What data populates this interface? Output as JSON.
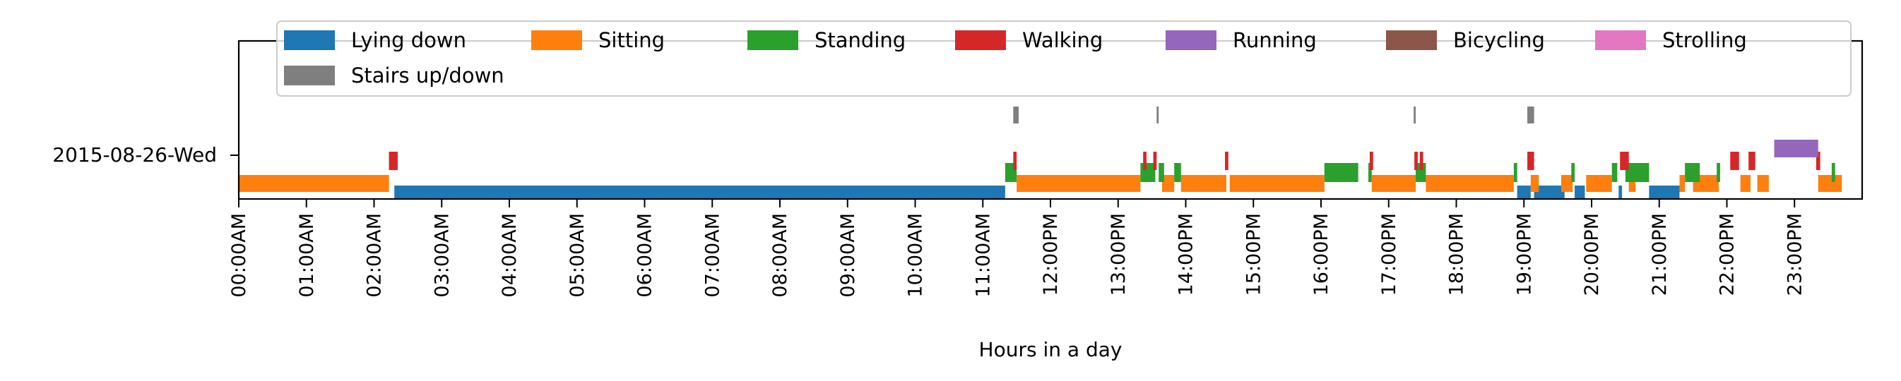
{
  "chart_data": {
    "type": "timeline",
    "xlabel": "Hours in a day",
    "xlim_hours": [
      0,
      24
    ],
    "row_label": "2015-08-26-Wed",
    "tick_labels": [
      "00:00AM",
      "01:00AM",
      "02:00AM",
      "03:00AM",
      "04:00AM",
      "05:00AM",
      "06:00AM",
      "07:00AM",
      "08:00AM",
      "09:00AM",
      "10:00AM",
      "11:00AM",
      "12:00PM",
      "13:00PM",
      "14:00PM",
      "15:00PM",
      "16:00PM",
      "17:00PM",
      "18:00PM",
      "19:00PM",
      "20:00PM",
      "21:00PM",
      "22:00PM",
      "23:00PM"
    ],
    "legend_position": "top",
    "grid": false,
    "series": [
      {
        "name": "Lying down",
        "color": "#1f77b4",
        "intervals": [
          [
            2.3,
            11.33
          ],
          [
            18.9,
            19.1
          ],
          [
            19.15,
            19.6
          ],
          [
            19.75,
            19.9
          ],
          [
            20.4,
            20.45
          ],
          [
            20.85,
            21.3
          ]
        ]
      },
      {
        "name": "Sitting",
        "color": "#ff7f0e",
        "intervals": [
          [
            0,
            2.22
          ],
          [
            11.5,
            13.33
          ],
          [
            13.65,
            13.83
          ],
          [
            13.93,
            14.6
          ],
          [
            14.65,
            16.05
          ],
          [
            16.75,
            17.4
          ],
          [
            17.55,
            18.85
          ],
          [
            19.1,
            19.22
          ],
          [
            19.55,
            19.72
          ],
          [
            19.92,
            20.3
          ],
          [
            20.55,
            20.65
          ],
          [
            21.3,
            21.38
          ],
          [
            21.5,
            21.88
          ],
          [
            22.2,
            22.35
          ],
          [
            22.45,
            22.62
          ],
          [
            23.35,
            23.7
          ]
        ]
      },
      {
        "name": "Standing",
        "color": "#2ca02c",
        "intervals": [
          [
            11.33,
            11.5
          ],
          [
            13.33,
            13.55
          ],
          [
            13.6,
            13.68
          ],
          [
            13.83,
            13.93
          ],
          [
            16.05,
            16.55
          ],
          [
            16.7,
            16.75
          ],
          [
            17.4,
            17.55
          ],
          [
            18.85,
            18.9
          ],
          [
            19.7,
            19.75
          ],
          [
            20.3,
            20.38
          ],
          [
            20.5,
            20.85
          ],
          [
            21.38,
            21.6
          ],
          [
            21.85,
            21.9
          ],
          [
            23.55,
            23.6
          ]
        ]
      },
      {
        "name": "Walking",
        "color": "#d62728",
        "intervals": [
          [
            2.22,
            2.35
          ],
          [
            11.45,
            11.5
          ],
          [
            13.37,
            13.42
          ],
          [
            13.52,
            13.57
          ],
          [
            14.58,
            14.63
          ],
          [
            16.72,
            16.77
          ],
          [
            17.38,
            17.43
          ],
          [
            17.46,
            17.51
          ],
          [
            19.05,
            19.15
          ],
          [
            20.42,
            20.55
          ],
          [
            22.05,
            22.18
          ],
          [
            22.32,
            22.42
          ],
          [
            23.32,
            23.38
          ]
        ]
      },
      {
        "name": "Running",
        "color": "#9467bd",
        "intervals": [
          [
            22.7,
            23.35
          ]
        ]
      },
      {
        "name": "Bicycling",
        "color": "#8c564b",
        "intervals": []
      },
      {
        "name": "Strolling",
        "color": "#e377c2",
        "intervals": []
      },
      {
        "name": "Stairs up/down",
        "color": "#7f7f7f",
        "intervals": [
          [
            11.45,
            11.53
          ],
          [
            13.57,
            13.6
          ],
          [
            17.37,
            17.4
          ],
          [
            19.05,
            19.15
          ]
        ]
      }
    ]
  }
}
